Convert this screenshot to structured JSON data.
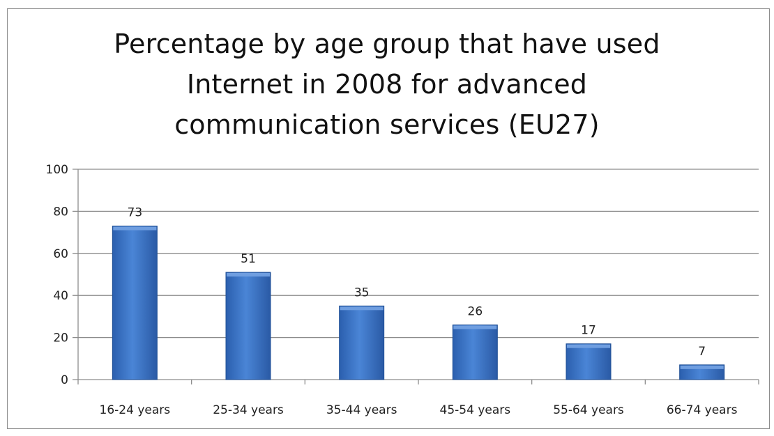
{
  "chart_data": {
    "type": "bar",
    "title_lines": [
      "Percentage by age group that have used",
      "Internet in 2008 for advanced",
      "communication services (EU27)"
    ],
    "xlabel": "",
    "ylabel": "",
    "categories": [
      "16-24 years",
      "25-34 years",
      "35-44 years",
      "45-54 years",
      "55-64 years",
      "66-74 years"
    ],
    "values": [
      73,
      51,
      35,
      26,
      17,
      7
    ],
    "ylim": [
      0,
      100
    ],
    "yticks": [
      0,
      20,
      40,
      60,
      80,
      100
    ],
    "ytick_labels": [
      "0",
      "20",
      "40",
      "60",
      "80",
      "100"
    ],
    "data_labels": [
      "73",
      "51",
      "35",
      "26",
      "17",
      "7"
    ],
    "grid": true,
    "legend": "none",
    "colors": {
      "bar": "#3a73c4",
      "bar_light": "#6f9ee0",
      "bar_dark": "#1f4f95",
      "grid": "#8c8c8c"
    }
  }
}
